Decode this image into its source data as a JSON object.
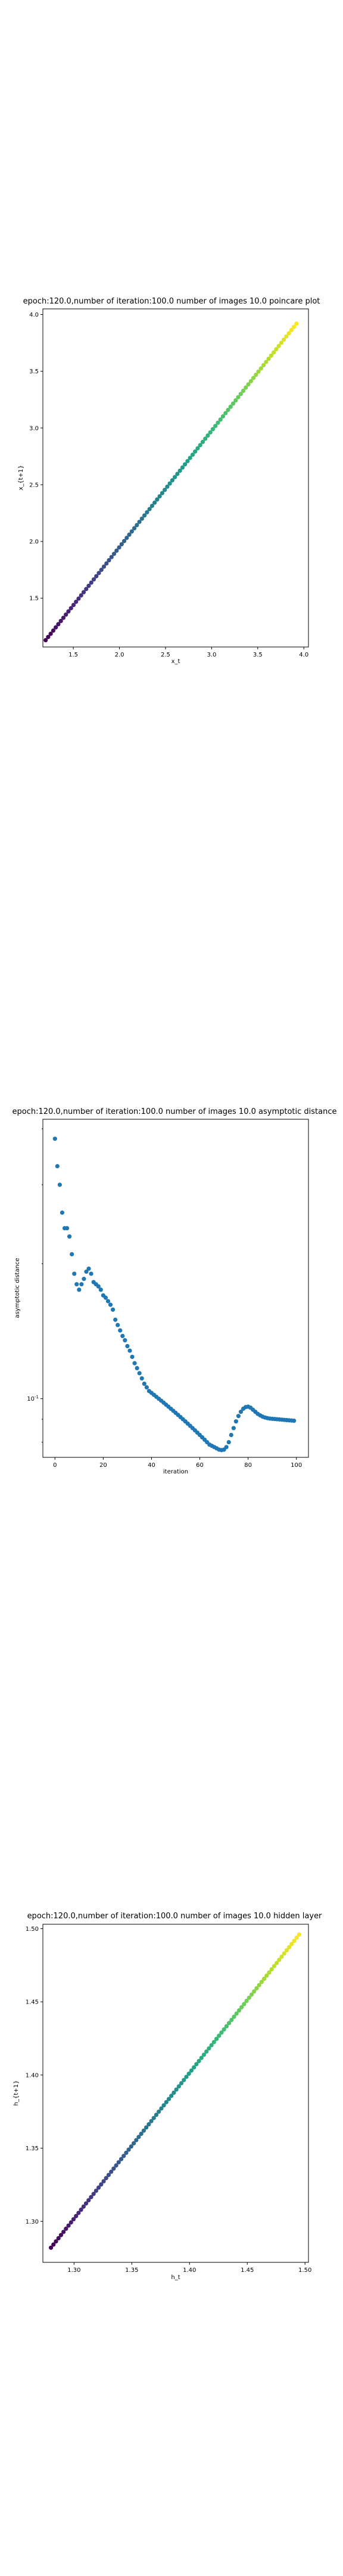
{
  "chart_data": [
    {
      "type": "scatter",
      "title": "epoch:120.0,number of iteration:100.0  number of images 10.0 poincare plot",
      "xlabel": "x_t",
      "ylabel": "x_{t+1}",
      "xlim": [
        1.17,
        4.05
      ],
      "ylim": [
        1.07,
        4.05
      ],
      "xticks": [
        "1.5",
        "2.0",
        "2.5",
        "3.0",
        "3.5",
        "4.0"
      ],
      "yticks": [
        "1.5",
        "2.0",
        "2.5",
        "3.0",
        "3.5",
        "4.0"
      ],
      "colormap": "viridis",
      "n_points": 100,
      "x_start": 1.2,
      "x_end": 3.92,
      "y_start": 1.13,
      "y_end": 3.92,
      "grid": false,
      "legend": "none"
    },
    {
      "type": "scatter",
      "title": "epoch:120.0,number of iteration:100.0  number of images 10.0 asymptotic distance",
      "xlabel": "iteration",
      "ylabel": "asymptotic distance",
      "xlim": [
        -5,
        105
      ],
      "yscale": "log",
      "ylim": [
        0.074,
        0.42
      ],
      "xticks": [
        "0",
        "20",
        "40",
        "60",
        "80",
        "100"
      ],
      "ytick_label": "10^-1",
      "color": "#1f77b4",
      "x": [
        0,
        1,
        2,
        3,
        4,
        5,
        6,
        7,
        8,
        9,
        10,
        11,
        12,
        13,
        14,
        15,
        16,
        17,
        18,
        19,
        20,
        21,
        22,
        23,
        24,
        25,
        26,
        27,
        28,
        29,
        30,
        31,
        32,
        33,
        34,
        35,
        36,
        37,
        38,
        39,
        40,
        41,
        42,
        43,
        44,
        45,
        46,
        47,
        48,
        49,
        50,
        51,
        52,
        53,
        54,
        55,
        56,
        57,
        58,
        59,
        60,
        61,
        62,
        63,
        64,
        65,
        66,
        67,
        68,
        69,
        70,
        71,
        72,
        73,
        74,
        75,
        76,
        77,
        78,
        79,
        80,
        81,
        82,
        83,
        84,
        85,
        86,
        87,
        88,
        89,
        90,
        91,
        92,
        93,
        94,
        95,
        96,
        97,
        98,
        99
      ],
      "y": [
        0.38,
        0.33,
        0.3,
        0.26,
        0.24,
        0.24,
        0.23,
        0.21,
        0.19,
        0.18,
        0.175,
        0.18,
        0.185,
        0.192,
        0.195,
        0.19,
        0.182,
        0.18,
        0.178,
        0.175,
        0.17,
        0.168,
        0.165,
        0.162,
        0.158,
        0.15,
        0.146,
        0.142,
        0.138,
        0.135,
        0.131,
        0.128,
        0.124,
        0.12,
        0.117,
        0.114,
        0.111,
        0.108,
        0.106,
        0.104,
        0.103,
        0.102,
        0.101,
        0.1,
        0.099,
        0.098,
        0.097,
        0.096,
        0.095,
        0.094,
        0.093,
        0.092,
        0.091,
        0.09,
        0.089,
        0.088,
        0.087,
        0.086,
        0.085,
        0.084,
        0.083,
        0.082,
        0.081,
        0.08,
        0.079,
        0.0785,
        0.078,
        0.0775,
        0.077,
        0.0768,
        0.077,
        0.078,
        0.08,
        0.083,
        0.086,
        0.089,
        0.0915,
        0.0935,
        0.095,
        0.0958,
        0.096,
        0.0955,
        0.0945,
        0.0935,
        0.0925,
        0.0918,
        0.0912,
        0.0908,
        0.0905,
        0.0903,
        0.0902,
        0.0901,
        0.09,
        0.0899,
        0.0898,
        0.0897,
        0.0896,
        0.0895,
        0.0894,
        0.0893
      ],
      "grid": false,
      "legend": "none"
    },
    {
      "type": "scatter",
      "title": "epoch:120.0,number of iteration:100.0  number of images 10.0 hidden layer",
      "xlabel": "h_t",
      "ylabel": "h_{t+1}",
      "xlim": [
        1.273,
        1.503
      ],
      "ylim": [
        1.272,
        1.503
      ],
      "xticks": [
        "1.30",
        "1.35",
        "1.40",
        "1.45",
        "1.50"
      ],
      "yticks": [
        "1.30",
        "1.35",
        "1.40",
        "1.45",
        "1.50"
      ],
      "colormap": "viridis",
      "n_points": 100,
      "x_start": 1.28,
      "x_end": 1.495,
      "y_start": 1.282,
      "y_end": 1.496,
      "grid": false,
      "legend": "none"
    }
  ]
}
